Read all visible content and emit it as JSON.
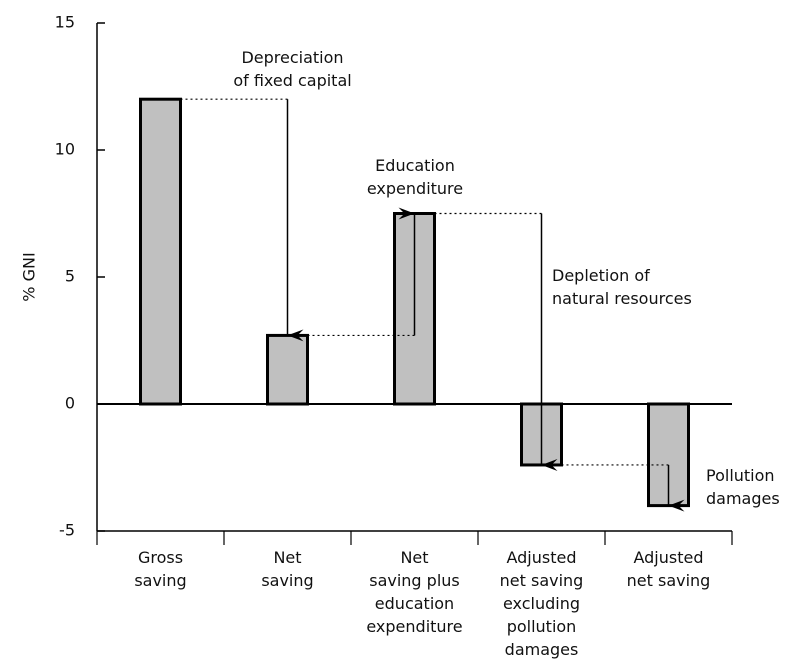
{
  "chart_data": {
    "type": "bar",
    "y_label": "% GNI",
    "categories": [
      "Gross\nsaving",
      "Net\nsaving",
      "Net\nsaving plus\neducation\nexpenditure",
      "Adjusted\nnet saving\nexcluding\npollution\ndamages",
      "Adjusted\nnet saving"
    ],
    "values": [
      12,
      2.7,
      7.5,
      -2.4,
      -4
    ],
    "color": "#c0c0c0",
    "ylim": [
      -5,
      15
    ],
    "yticks": [
      -5,
      0,
      5,
      10,
      15
    ],
    "annotations": [
      "Depreciation\nof fixed capital",
      "Education\nexpenditure",
      "Depletion of\nnatural resources",
      "Pollution\ndamages"
    ]
  }
}
